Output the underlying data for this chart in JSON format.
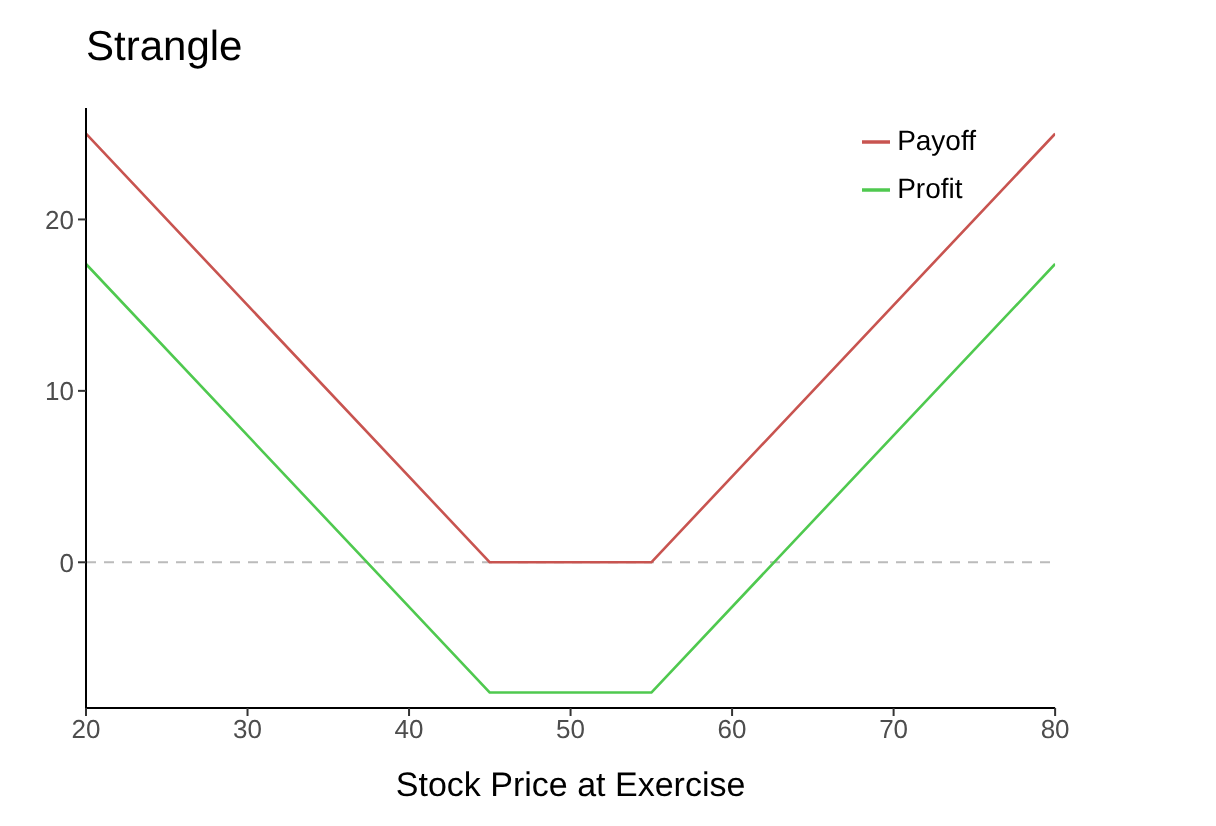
{
  "chart_data": {
    "type": "line",
    "title": "Strangle",
    "xlabel": "Stock Price at Exercise",
    "x": [
      20,
      45,
      55,
      80
    ],
    "series": [
      {
        "name": "Payoff",
        "color": "#c85450",
        "values": [
          25,
          0,
          0,
          25
        ]
      },
      {
        "name": "Profit",
        "color": "#4fc94f",
        "values": [
          17.4,
          -7.6,
          -7.6,
          17.4
        ]
      }
    ],
    "xlim": [
      20,
      80
    ],
    "xticks": [
      20,
      30,
      40,
      50,
      60,
      70,
      80
    ],
    "ylim": [
      -8.5,
      26.5
    ],
    "yticks": [
      0,
      10,
      20
    ],
    "ref_lines": [
      {
        "axis": "y",
        "value": 0,
        "color": "#bbbbbb",
        "line_style": "dashed"
      }
    ],
    "grid": false,
    "legend": "top right",
    "marker": "none",
    "line_style": "solid"
  }
}
